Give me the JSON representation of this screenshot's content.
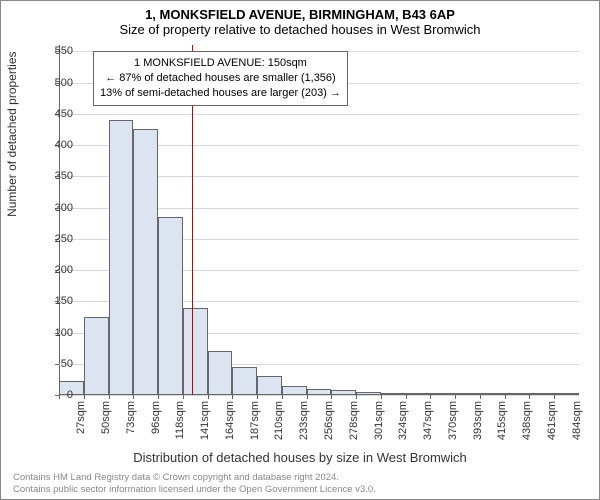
{
  "title_main": "1, MONKSFIELD AVENUE, BIRMINGHAM, B43 6AP",
  "title_sub": "Size of property relative to detached houses in West Bromwich",
  "ylabel": "Number of detached properties",
  "xlabel": "Distribution of detached houses by size in West Bromwich",
  "chart": {
    "type": "histogram",
    "ylim": [
      0,
      560
    ],
    "ytick_step": 50,
    "yticks": [
      0,
      50,
      100,
      150,
      200,
      250,
      300,
      350,
      400,
      450,
      500,
      550
    ],
    "xtick_labels": [
      "27sqm",
      "50sqm",
      "73sqm",
      "96sqm",
      "118sqm",
      "141sqm",
      "164sqm",
      "187sqm",
      "210sqm",
      "233sqm",
      "256sqm",
      "278sqm",
      "301sqm",
      "324sqm",
      "347sqm",
      "370sqm",
      "393sqm",
      "415sqm",
      "438sqm",
      "461sqm",
      "484sqm"
    ],
    "values": [
      23,
      125,
      440,
      425,
      285,
      140,
      70,
      45,
      30,
      15,
      10,
      8,
      5,
      4,
      3,
      2,
      2,
      1,
      1,
      1,
      1
    ],
    "bar_fill": "#dbe4f0",
    "bar_edge": "#666666",
    "grid_color": "#d8d8d8",
    "background_color": "#ffffff",
    "ref_line_value": 150,
    "ref_line_color": "#cc0000",
    "xtick_range": [
      27,
      484
    ]
  },
  "annotation": {
    "line1": "1 MONKSFIELD AVENUE: 150sqm",
    "line2": "← 87% of detached houses are smaller (1,356)",
    "line3": "13% of semi-detached houses are larger (203) →"
  },
  "footer": {
    "line1": "Contains HM Land Registry data © Crown copyright and database right 2024.",
    "line2": "Contains public sector information licensed under the Open Government Licence v3.0."
  }
}
